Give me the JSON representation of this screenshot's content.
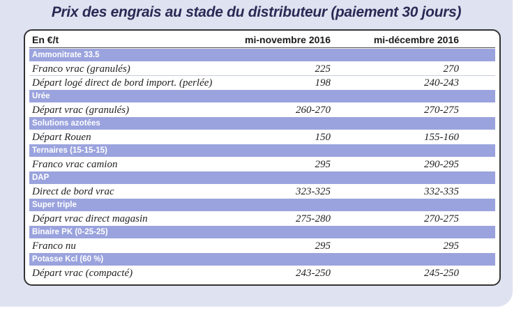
{
  "title": "Prix des engrais au stade du distributeur (paiement 30 jours)",
  "table": {
    "header": {
      "unit": "En €/t",
      "col1": "mi-novembre 2016",
      "col2": "mi-décembre 2016"
    },
    "rows": [
      {
        "type": "category",
        "label": "Ammonitrate 33.5"
      },
      {
        "type": "item",
        "label": "Franco vrac (granulés)",
        "nov": "225",
        "dec": "270"
      },
      {
        "type": "item",
        "label": "Départ logé direct de bord import. (perlée)",
        "nov": "198",
        "dec": "240-243"
      },
      {
        "type": "category",
        "label": "Urée"
      },
      {
        "type": "item",
        "label": "Départ vrac (granulés)",
        "nov": "260-270",
        "dec": "270-275"
      },
      {
        "type": "category",
        "label": "Solutions azotées"
      },
      {
        "type": "item",
        "label": "Départ Rouen",
        "nov": "150",
        "dec": "155-160"
      },
      {
        "type": "category",
        "label": "Ternaires (15-15-15)"
      },
      {
        "type": "item",
        "label": "Franco vrac camion",
        "nov": "295",
        "dec": "290-295"
      },
      {
        "type": "category",
        "label": "DAP"
      },
      {
        "type": "item",
        "label": "Direct de bord vrac",
        "nov": "323-325",
        "dec": "332-335"
      },
      {
        "type": "category",
        "label": "Super triple"
      },
      {
        "type": "item",
        "label": "Départ vrac direct magasin",
        "nov": "275-280",
        "dec": "270-275"
      },
      {
        "type": "category",
        "label": "Binaire PK (0-25-25)"
      },
      {
        "type": "item",
        "label": "Franco nu",
        "nov": "295",
        "dec": "295"
      },
      {
        "type": "category",
        "label": "Potasse Kcl (60 %)"
      },
      {
        "type": "item",
        "label": "Départ vrac (compacté)",
        "nov": "243-250",
        "dec": "245-250"
      }
    ]
  },
  "colors": {
    "category_bg": "#9aa3dd",
    "panel_bg": "#dfe3f1",
    "title_text": "#2a2a55"
  }
}
